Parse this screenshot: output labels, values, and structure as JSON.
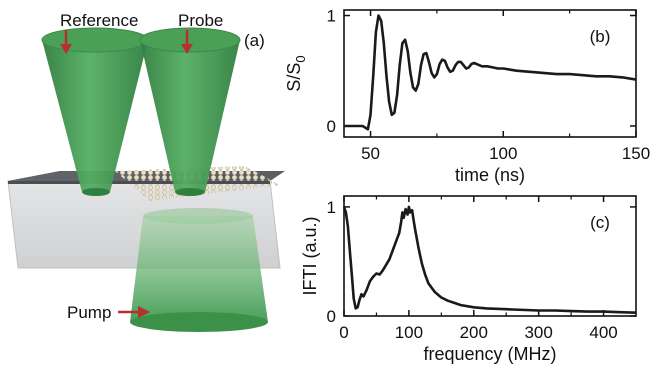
{
  "panel_a": {
    "panel_label": "(a)",
    "labels": {
      "reference": "Reference",
      "probe": "Probe",
      "pump": "Pump"
    },
    "colors": {
      "beam": "#3f9a50",
      "beam_dark": "#2f7f3f",
      "arrow": "#b5302e",
      "substrate_top": "#5c5f63",
      "substrate_side": "#d9dadb",
      "particles": "#e7dcc4"
    }
  },
  "chart_data": [
    {
      "type": "line",
      "panel_label": "(b)",
      "xlabel": "time (ns)",
      "ylabel_main": "S/S",
      "ylabel_sub": "0",
      "xlim": [
        40,
        150
      ],
      "ylim": [
        -0.1,
        1.05
      ],
      "xticks": [
        50,
        100,
        150
      ],
      "yticks": [
        0,
        1
      ],
      "series": [
        {
          "x": [
            40,
            47,
            49,
            50,
            51,
            52,
            53,
            54,
            55,
            56,
            57,
            58,
            59,
            60,
            61,
            62,
            63,
            64,
            65,
            66,
            67,
            68,
            69,
            70,
            71,
            72,
            73,
            74,
            75,
            76,
            77,
            78,
            79,
            80,
            81,
            82,
            83,
            84,
            85,
            86,
            87,
            88,
            89,
            90,
            92,
            94,
            96,
            98,
            100,
            105,
            110,
            115,
            120,
            125,
            130,
            135,
            140,
            145,
            150
          ],
          "y": [
            0.0,
            0.0,
            -0.03,
            0.1,
            0.45,
            0.85,
            1.0,
            0.95,
            0.75,
            0.45,
            0.22,
            0.1,
            0.12,
            0.28,
            0.55,
            0.75,
            0.78,
            0.68,
            0.48,
            0.35,
            0.32,
            0.38,
            0.55,
            0.65,
            0.66,
            0.58,
            0.48,
            0.44,
            0.47,
            0.56,
            0.6,
            0.59,
            0.53,
            0.49,
            0.5,
            0.55,
            0.58,
            0.58,
            0.55,
            0.52,
            0.53,
            0.56,
            0.57,
            0.56,
            0.54,
            0.54,
            0.53,
            0.52,
            0.52,
            0.5,
            0.49,
            0.48,
            0.47,
            0.47,
            0.46,
            0.45,
            0.45,
            0.44,
            0.42
          ]
        }
      ]
    },
    {
      "type": "line",
      "panel_label": "(c)",
      "xlabel": "frequency (MHz)",
      "ylabel": "IFTI (a.u.)",
      "xlim": [
        0,
        450
      ],
      "ylim": [
        0,
        1.1
      ],
      "xticks": [
        0,
        100,
        200,
        300,
        400
      ],
      "yticks": [
        0,
        1
      ],
      "series": [
        {
          "x": [
            0,
            3,
            6,
            9,
            12,
            15,
            18,
            21,
            24,
            27,
            30,
            35,
            40,
            45,
            50,
            55,
            60,
            65,
            70,
            75,
            80,
            85,
            88,
            90,
            92,
            95,
            98,
            100,
            102,
            105,
            108,
            110,
            115,
            120,
            125,
            130,
            140,
            150,
            160,
            170,
            180,
            190,
            200,
            220,
            240,
            260,
            280,
            300,
            325,
            350,
            375,
            400,
            425,
            450
          ],
          "y": [
            1.0,
            0.95,
            0.82,
            0.6,
            0.38,
            0.16,
            0.07,
            0.08,
            0.15,
            0.2,
            0.18,
            0.24,
            0.32,
            0.36,
            0.39,
            0.38,
            0.42,
            0.47,
            0.52,
            0.6,
            0.68,
            0.76,
            0.86,
            0.95,
            0.9,
            0.98,
            0.93,
            1.0,
            0.95,
            0.97,
            0.85,
            0.78,
            0.62,
            0.48,
            0.38,
            0.3,
            0.22,
            0.17,
            0.14,
            0.12,
            0.1,
            0.09,
            0.08,
            0.07,
            0.065,
            0.06,
            0.055,
            0.05,
            0.05,
            0.045,
            0.04,
            0.04,
            0.035,
            0.03
          ]
        }
      ]
    }
  ]
}
